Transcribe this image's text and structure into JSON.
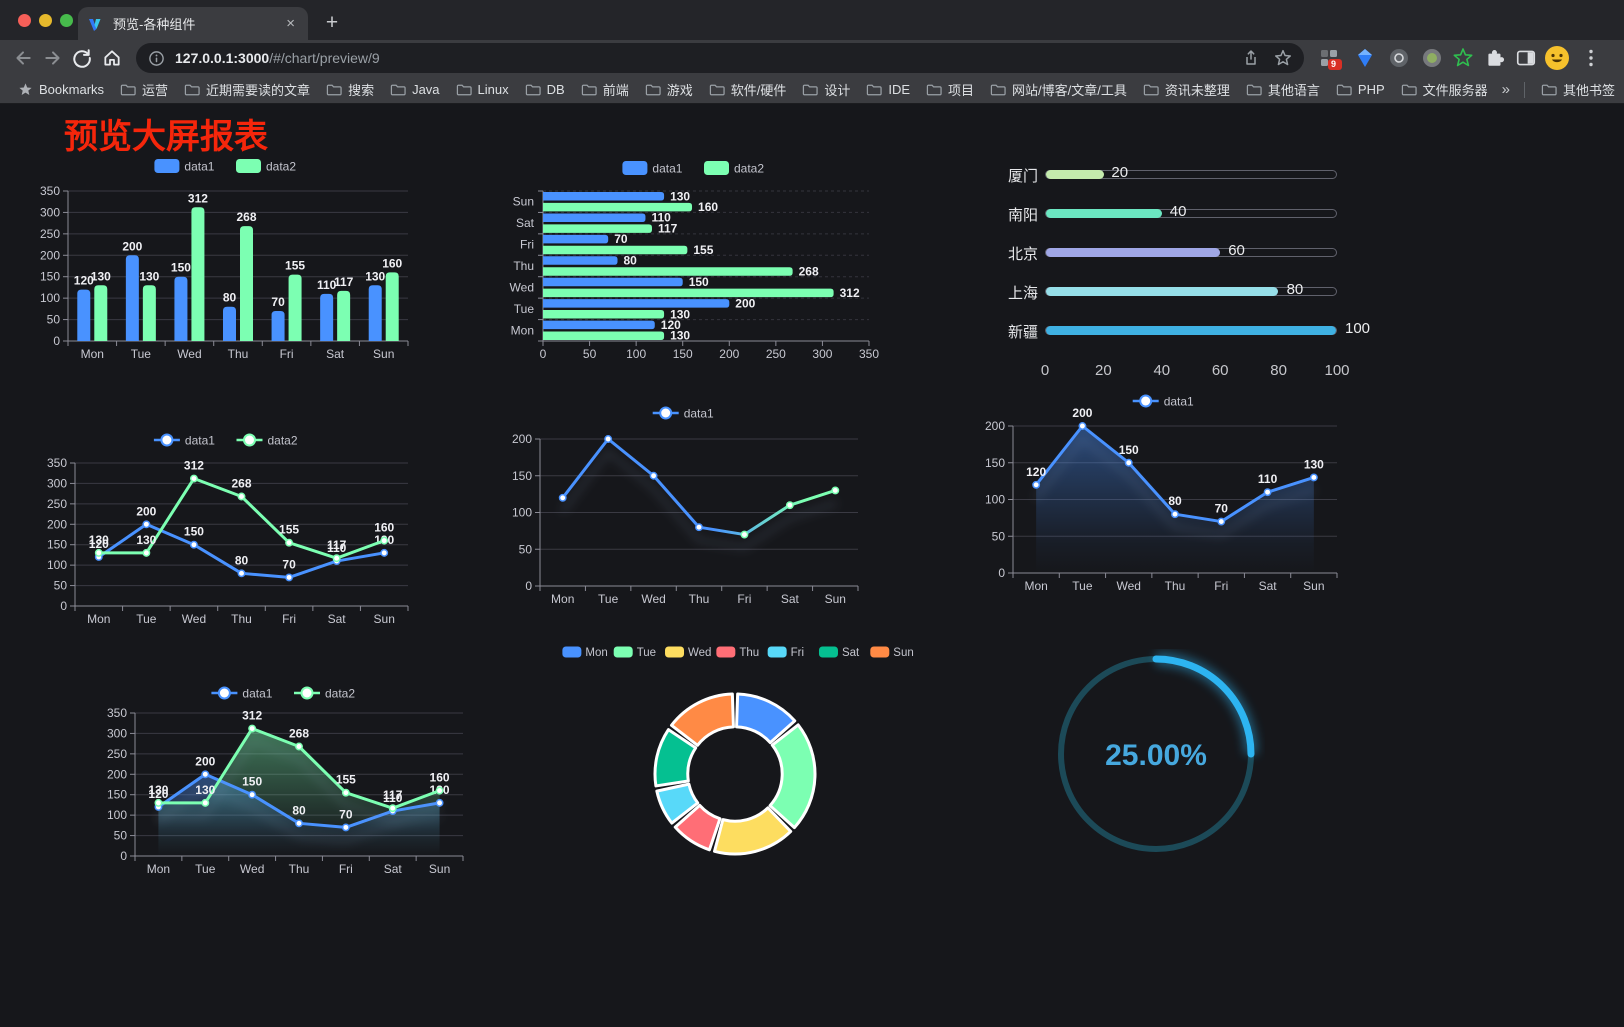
{
  "browser": {
    "tab_title": "预览-各种组件",
    "tab_close_glyph": "×",
    "new_tab_glyph": "+",
    "url_host": "127.0.0.1:3000",
    "url_path": "/#/chart/preview/9",
    "extension_badge": "9",
    "bookmarks_root_label": "Bookmarks",
    "bookmarks": [
      "运营",
      "近期需要读的文章",
      "搜索",
      "Java",
      "Linux",
      "DB",
      "前端",
      "游戏",
      "软件/硬件",
      "设计",
      "IDE",
      "项目",
      "网站/博客/文章/工具",
      "资讯未整理",
      "其他语言",
      "PHP",
      "文件服务器"
    ],
    "bookmarks_overflow_glyph": "»",
    "other_bookmarks_label": "其他书签"
  },
  "page": {
    "title": "预览大屏报表",
    "title_color": "#f5260b"
  },
  "palette": {
    "data1_blue": "#4992ff",
    "data2_green": "#7cffb2",
    "yellow": "#fddd60",
    "red": "#ff6e76",
    "light_blue": "#58d9f9",
    "teal": "#05c091",
    "orange": "#ff8a45"
  },
  "chart_data": [
    {
      "id": "bar-vertical",
      "type": "bar",
      "categories": [
        "Mon",
        "Tue",
        "Wed",
        "Thu",
        "Fri",
        "Sat",
        "Sun"
      ],
      "series": [
        {
          "name": "data1",
          "color": "#4992ff",
          "values": [
            120,
            200,
            150,
            80,
            70,
            110,
            130
          ]
        },
        {
          "name": "data2",
          "color": "#7cffb2",
          "values": [
            130,
            130,
            312,
            268,
            155,
            117,
            160
          ]
        }
      ],
      "ylim": [
        0,
        350
      ],
      "yticks": [
        0,
        50,
        100,
        150,
        200,
        250,
        300,
        350
      ],
      "legend_position": "top",
      "value_labels": true,
      "grid": true
    },
    {
      "id": "bar-horizontal",
      "type": "hbar",
      "categories": [
        "Mon",
        "Tue",
        "Wed",
        "Thu",
        "Fri",
        "Sat",
        "Sun"
      ],
      "series": [
        {
          "name": "data1",
          "color": "#4992ff",
          "values": [
            120,
            200,
            150,
            80,
            70,
            110,
            130
          ]
        },
        {
          "name": "data2",
          "color": "#7cffb2",
          "values": [
            130,
            130,
            312,
            268,
            155,
            117,
            160
          ]
        }
      ],
      "xlim": [
        0,
        350
      ],
      "xticks": [
        0,
        50,
        100,
        150,
        200,
        250,
        300,
        350
      ],
      "legend_position": "top",
      "value_labels": true,
      "grid": true
    },
    {
      "id": "progress-bars",
      "type": "progress",
      "max": 100,
      "items": [
        {
          "label": "厦门",
          "value": 20,
          "color": "#c4ebad"
        },
        {
          "label": "南阳",
          "value": 40,
          "color": "#6be6c1"
        },
        {
          "label": "北京",
          "value": 60,
          "color": "#a0a7e6"
        },
        {
          "label": "上海",
          "value": 80,
          "color": "#96dee8"
        },
        {
          "label": "新疆",
          "value": 100,
          "color": "#3fb1e3"
        }
      ],
      "xticks": [
        0,
        20,
        40,
        60,
        80,
        100
      ]
    },
    {
      "id": "line-two-series",
      "type": "line",
      "categories": [
        "Mon",
        "Tue",
        "Wed",
        "Thu",
        "Fri",
        "Sat",
        "Sun"
      ],
      "series": [
        {
          "name": "data1",
          "color": "#4992ff",
          "values": [
            120,
            200,
            150,
            80,
            70,
            110,
            130
          ]
        },
        {
          "name": "data2",
          "color": "#7cffb2",
          "values": [
            130,
            130,
            312,
            268,
            155,
            117,
            160
          ]
        }
      ],
      "ylim": [
        0,
        350
      ],
      "yticks": [
        0,
        50,
        100,
        150,
        200,
        250,
        300,
        350
      ],
      "legend_position": "top",
      "value_labels": true,
      "grid": true
    },
    {
      "id": "line-gradient",
      "type": "line",
      "categories": [
        "Mon",
        "Tue",
        "Wed",
        "Thu",
        "Fri",
        "Sat",
        "Sun"
      ],
      "series": [
        {
          "name": "data1",
          "color": "#4992ff",
          "gradient": [
            "#4992ff",
            "#7cffb2"
          ],
          "values": [
            120,
            200,
            150,
            80,
            70,
            110,
            130
          ]
        }
      ],
      "ylim": [
        0,
        200
      ],
      "yticks": [
        0,
        50,
        100,
        150,
        200
      ],
      "legend_position": "top",
      "value_labels": false,
      "shadow": true,
      "grid": true
    },
    {
      "id": "line-area",
      "type": "line",
      "categories": [
        "Mon",
        "Tue",
        "Wed",
        "Thu",
        "Fri",
        "Sat",
        "Sun"
      ],
      "series": [
        {
          "name": "data1",
          "color": "#4992ff",
          "area": true,
          "values": [
            120,
            200,
            150,
            80,
            70,
            110,
            130
          ]
        }
      ],
      "ylim": [
        0,
        200
      ],
      "yticks": [
        0,
        50,
        100,
        150,
        200
      ],
      "legend_position": "top",
      "value_labels": true,
      "shadow": true,
      "grid": true
    },
    {
      "id": "line-area-two",
      "type": "line",
      "categories": [
        "Mon",
        "Tue",
        "Wed",
        "Thu",
        "Fri",
        "Sat",
        "Sun"
      ],
      "series": [
        {
          "name": "data1",
          "color": "#4992ff",
          "area": true,
          "values": [
            120,
            200,
            150,
            80,
            70,
            110,
            130
          ]
        },
        {
          "name": "data2",
          "color": "#7cffb2",
          "area": true,
          "values": [
            130,
            130,
            312,
            268,
            155,
            117,
            160
          ]
        }
      ],
      "ylim": [
        0,
        350
      ],
      "yticks": [
        0,
        50,
        100,
        150,
        200,
        250,
        300,
        350
      ],
      "legend_position": "top",
      "value_labels": true,
      "shadow": true,
      "grid": true
    },
    {
      "id": "donut",
      "type": "pie",
      "legend_position": "top",
      "inner_radius_ratio": 0.59,
      "items": [
        {
          "name": "Mon",
          "value": 120,
          "color": "#4992ff"
        },
        {
          "name": "Tue",
          "value": 200,
          "color": "#7cffb2"
        },
        {
          "name": "Wed",
          "value": 150,
          "color": "#fddd60"
        },
        {
          "name": "Thu",
          "value": 80,
          "color": "#ff6e76"
        },
        {
          "name": "Fri",
          "value": 70,
          "color": "#58d9f9"
        },
        {
          "name": "Sat",
          "value": 110,
          "color": "#05c091"
        },
        {
          "name": "Sun",
          "value": 130,
          "color": "#ff8a45"
        }
      ]
    },
    {
      "id": "gauge",
      "type": "gauge",
      "value": 25,
      "label": "25.00%",
      "color": "#2db4f1",
      "track_color": "#1c4a58",
      "text_color": "#46a8de"
    }
  ]
}
